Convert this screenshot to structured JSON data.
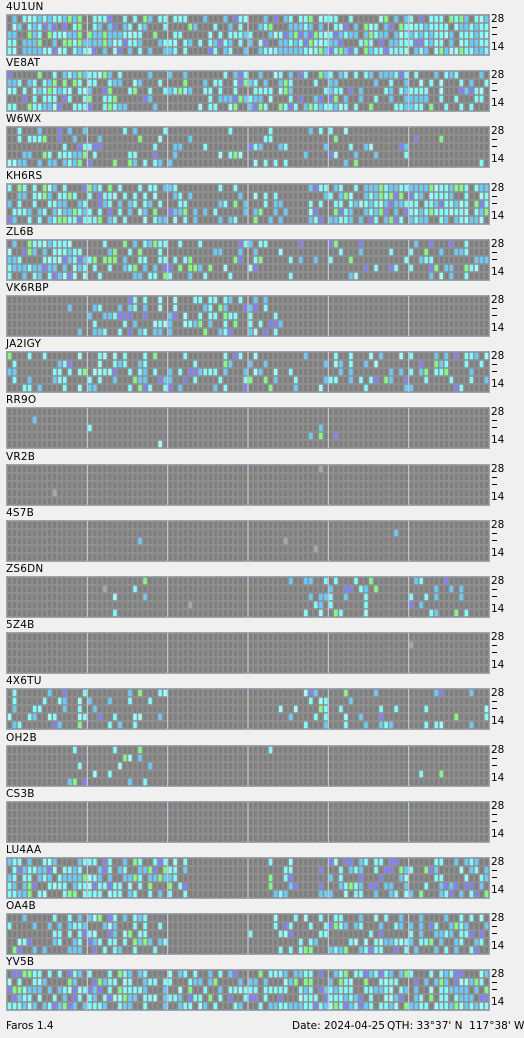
{
  "palette": {
    "grid_bg": "#808080",
    "grid_line": "#9a9a9a",
    "hour_line": "#c8d0da",
    "cell_empty": "#7f7f7f",
    "cyan": "#66ccff",
    "aqua": "#7fffff",
    "light_aqua": "#a0ffff",
    "blue": "#8080ff",
    "green": "#7fff7f",
    "gray": "#a8a8a8"
  },
  "band_labels": {
    "top": "28",
    "bottom": "14",
    "mid": "-"
  },
  "beacons": [
    {
      "callsign": "4U1UN",
      "seed": 11,
      "profile": [
        0.7,
        0.75,
        0.72,
        0.7,
        0.75,
        0.8,
        0.6,
        0.5,
        0.55,
        0.45,
        0.6,
        0.7,
        0.65,
        0.7,
        0.9,
        0.85,
        0.75,
        0.6,
        0.7,
        0.7,
        0.75,
        0.8,
        0.8,
        0.85
      ]
    },
    {
      "callsign": "VE8AT",
      "seed": 23,
      "profile": [
        0.5,
        0.7,
        0.65,
        0.6,
        0.55,
        0.45,
        0.4,
        0.3,
        0.25,
        0.3,
        0.4,
        0.5,
        0.6,
        0.55,
        0.5,
        0.4,
        0.45,
        0.35,
        0.5,
        0.55,
        0.5,
        0.45,
        0.35,
        0.4
      ]
    },
    {
      "callsign": "W6WX",
      "seed": 31,
      "profile": [
        0.25,
        0.35,
        0.5,
        0.55,
        0.35,
        0.25,
        0.3,
        0.2,
        0.15,
        0.15,
        0.1,
        0.1,
        0.2,
        0.2,
        0.15,
        0.1,
        0.2,
        0.15,
        0.15,
        0.15,
        0.1,
        0.15,
        0.1,
        0.05
      ]
    },
    {
      "callsign": "KH6RS",
      "seed": 47,
      "profile": [
        0.75,
        0.7,
        0.8,
        0.65,
        0.6,
        0.55,
        0.6,
        0.45,
        0.4,
        0.3,
        0.35,
        0.3,
        0.3,
        0.2,
        0.3,
        0.5,
        0.7,
        0.75,
        0.8,
        0.75,
        0.85,
        0.8,
        0.7,
        0.65
      ]
    },
    {
      "callsign": "ZL6B",
      "seed": 53,
      "profile": [
        0.6,
        0.75,
        0.85,
        0.7,
        0.4,
        0.45,
        0.5,
        0.55,
        0.35,
        0.35,
        0.3,
        0.3,
        0.25,
        0.15,
        0.2,
        0.15,
        0.1,
        0.2,
        0.15,
        0.2,
        0.25,
        0.3,
        0.25,
        0.3
      ]
    },
    {
      "callsign": "VK6RBP",
      "seed": 61,
      "profile": [
        0.0,
        0.0,
        0.0,
        0.25,
        0.4,
        0.55,
        0.55,
        0.5,
        0.5,
        0.45,
        0.45,
        0.4,
        0.45,
        0.2,
        0.0,
        0.0,
        0.0,
        0.0,
        0.0,
        0.0,
        0.0,
        0.0,
        0.0,
        0.0
      ]
    },
    {
      "callsign": "JA2IGY",
      "seed": 71,
      "profile": [
        0.25,
        0.35,
        0.4,
        0.5,
        0.55,
        0.4,
        0.45,
        0.4,
        0.35,
        0.3,
        0.35,
        0.3,
        0.25,
        0.25,
        0.3,
        0.3,
        0.25,
        0.3,
        0.25,
        0.3,
        0.25,
        0.3,
        0.35,
        0.3
      ]
    },
    {
      "callsign": "RR9O",
      "seed": 83,
      "profile": [
        0.0,
        0.06,
        0.0,
        0.0,
        0.08,
        0.1,
        0.0,
        0.05,
        0.0,
        0.0,
        0.0,
        0.0,
        0.0,
        0.0,
        0.05,
        0.12,
        0.1,
        0.0,
        0.0,
        0.0,
        0.0,
        0.0,
        0.0,
        0.0
      ]
    },
    {
      "callsign": "VR2B",
      "seed": 97,
      "profile": [
        0.0,
        0.0,
        0.0,
        0.0,
        0.0,
        0.0,
        0.02,
        0.0,
        0.0,
        0.0,
        0.0,
        0.0,
        0.0,
        0.0,
        0.0,
        0.0,
        0.0,
        0.0,
        0.0,
        0.0,
        0.0,
        0.0,
        0.0,
        0.0
      ]
    },
    {
      "callsign": "4S7B",
      "seed": 101,
      "profile": [
        0.0,
        0.0,
        0.0,
        0.0,
        0.0,
        0.0,
        0.04,
        0.0,
        0.0,
        0.0,
        0.0,
        0.0,
        0.0,
        0.0,
        0.0,
        0.0,
        0.0,
        0.0,
        0.0,
        0.03,
        0.0,
        0.0,
        0.0,
        0.0
      ]
    },
    {
      "callsign": "ZS6DN",
      "seed": 109,
      "profile": [
        0.0,
        0.0,
        0.0,
        0.0,
        0.0,
        0.1,
        0.1,
        0.0,
        0.0,
        0.0,
        0.0,
        0.0,
        0.0,
        0.0,
        0.2,
        0.45,
        0.5,
        0.3,
        0.1,
        0.0,
        0.2,
        0.2,
        0.25,
        0.0
      ]
    },
    {
      "callsign": "5Z4B",
      "seed": 113,
      "profile": [
        0.0,
        0.0,
        0.0,
        0.0,
        0.0,
        0.0,
        0.0,
        0.0,
        0.0,
        0.0,
        0.0,
        0.0,
        0.0,
        0.0,
        0.0,
        0.0,
        0.0,
        0.0,
        0.0,
        0.0,
        0.0,
        0.0,
        0.0,
        0.0
      ]
    },
    {
      "callsign": "4X6TU",
      "seed": 127,
      "profile": [
        0.3,
        0.25,
        0.35,
        0.3,
        0.3,
        0.25,
        0.25,
        0.15,
        0.0,
        0.0,
        0.0,
        0.0,
        0.0,
        0.05,
        0.3,
        0.35,
        0.3,
        0.15,
        0.1,
        0.1,
        0.15,
        0.2,
        0.15,
        0.2
      ]
    },
    {
      "callsign": "OH2B",
      "seed": 131,
      "profile": [
        0.0,
        0.0,
        0.0,
        0.15,
        0.15,
        0.15,
        0.15,
        0.05,
        0.0,
        0.0,
        0.0,
        0.0,
        0.0,
        0.05,
        0.0,
        0.0,
        0.05,
        0.0,
        0.0,
        0.0,
        0.05,
        0.1,
        0.0,
        0.0
      ]
    },
    {
      "callsign": "CS3B",
      "seed": 137,
      "profile": [
        0.0,
        0.0,
        0.0,
        0.0,
        0.0,
        0.0,
        0.03,
        0.0,
        0.0,
        0.0,
        0.0,
        0.0,
        0.0,
        0.0,
        0.0,
        0.0,
        0.0,
        0.0,
        0.0,
        0.0,
        0.0,
        0.0,
        0.0,
        0.0
      ]
    },
    {
      "callsign": "LU4AA",
      "seed": 149,
      "profile": [
        0.8,
        0.85,
        0.8,
        0.85,
        0.8,
        0.75,
        0.6,
        0.6,
        0.45,
        0.0,
        0.0,
        0.0,
        0.0,
        0.2,
        0.25,
        0.2,
        0.4,
        0.55,
        0.4,
        0.45,
        0.55,
        0.6,
        0.55,
        0.6
      ]
    },
    {
      "callsign": "OA4B",
      "seed": 157,
      "profile": [
        0.3,
        0.4,
        0.6,
        0.65,
        0.6,
        0.5,
        0.45,
        0.2,
        0.0,
        0.0,
        0.0,
        0.0,
        0.15,
        0.35,
        0.4,
        0.45,
        0.5,
        0.35,
        0.3,
        0.4,
        0.45,
        0.35,
        0.35,
        0.4
      ]
    },
    {
      "callsign": "YV5B",
      "seed": 163,
      "profile": [
        0.7,
        0.75,
        0.8,
        0.75,
        0.7,
        0.75,
        0.65,
        0.55,
        0.5,
        0.5,
        0.55,
        0.45,
        0.45,
        0.6,
        0.7,
        0.8,
        0.75,
        0.7,
        0.75,
        0.7,
        0.7,
        0.75,
        0.8,
        0.75
      ]
    }
  ],
  "status_bar": {
    "app_name": "Faros 1.4",
    "date": "Date: 2024-04-25",
    "qth": "QTH: 33°37' N  117°38' W"
  }
}
